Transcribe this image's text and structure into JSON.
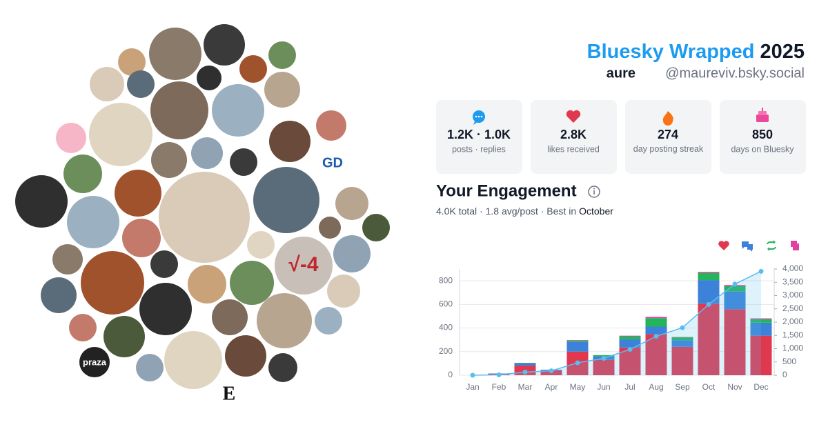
{
  "header": {
    "title": "Bluesky Wrapped",
    "year": "2025",
    "name": "aure",
    "handle": "@maureviv.bsky.social"
  },
  "avatar_texts": [
    "praza",
    "E",
    "GD",
    "√-4"
  ],
  "stats": [
    {
      "value": "1.2K · 1.0K",
      "label": "posts · replies"
    },
    {
      "value": "2.8K",
      "label": "likes received"
    },
    {
      "value": "274",
      "label": "day posting streak"
    },
    {
      "value": "850",
      "label": "days on Bluesky"
    }
  ],
  "engagement": {
    "heading": "Your Engagement",
    "summary": "4.0K total · 1.8 avg/post · Best in",
    "best": "October"
  },
  "chart_data": {
    "type": "stacked-bar-line",
    "categories": [
      "Jan",
      "Feb",
      "Mar",
      "Apr",
      "May",
      "Jun",
      "Jul",
      "Aug",
      "Sep",
      "Oct",
      "Nov",
      "Dec"
    ],
    "series": [
      {
        "color": "#e0394f",
        "values": [
          0,
          12,
          82,
          40,
          200,
          130,
          235,
          347,
          241,
          606,
          559,
          335
        ]
      },
      {
        "color": "#3b82d8",
        "values": [
          0,
          3,
          20,
          7,
          82,
          30,
          70,
          65,
          55,
          200,
          150,
          110
        ]
      },
      {
        "color": "#22b55a",
        "values": [
          0,
          0,
          3,
          0,
          12,
          10,
          25,
          72,
          25,
          60,
          45,
          30
        ]
      },
      {
        "color": "#e040a0",
        "values": [
          0,
          0,
          0,
          0,
          4,
          0,
          5,
          10,
          3,
          10,
          10,
          7
        ]
      },
      {
        "color": "#5bbcf0",
        "axis": "y2",
        "values": [
          0,
          15,
          120,
          167,
          467,
          637,
          972,
          1466,
          1790,
          2666,
          3431,
          3913
        ]
      }
    ],
    "ylim": [
      0,
      900
    ],
    "yticks": [
      0,
      200,
      400,
      600,
      800
    ],
    "y2lim": [
      0,
      4000
    ],
    "y2ticks": [
      0,
      500,
      {
        "value": 1000,
        "label": "1,000"
      },
      {
        "value": 1500,
        "label": "1,500"
      },
      {
        "value": 2000,
        "label": "2,000"
      },
      {
        "value": 2500,
        "label": "2,500"
      },
      {
        "value": 3000,
        "label": "3,000"
      },
      {
        "value": 3500,
        "label": "3,500"
      },
      {
        "value": 4000,
        "label": "4,000"
      }
    ],
    "grid": true
  }
}
